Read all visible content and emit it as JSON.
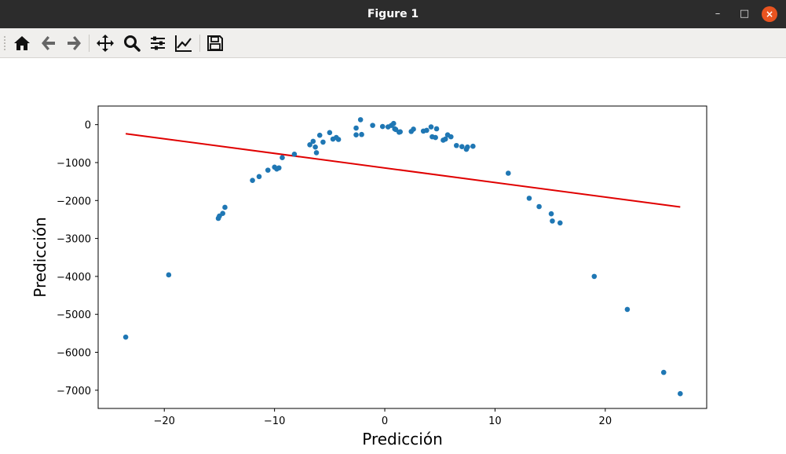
{
  "window": {
    "title": "Figure 1"
  },
  "window_controls": {
    "minimize": "–",
    "maximize": "□",
    "close": "×"
  },
  "toolbar": {
    "items": [
      "home-icon",
      "back-icon",
      "forward-icon",
      "pan-icon",
      "zoom-icon",
      "configure-subplots-icon",
      "edit-axis-icon",
      "save-icon"
    ]
  },
  "colors": {
    "scatter": "#1f77b4",
    "fit_line": "#e00000",
    "titlebar": "#2c2c2c",
    "close_button": "#e95420"
  },
  "chart_data": {
    "type": "scatter",
    "title": "",
    "xlabel": "Predicción",
    "ylabel": "Predicción",
    "xlim": [
      -26,
      29.2
    ],
    "ylim": [
      -7480,
      490
    ],
    "xticks": [
      -20,
      -10,
      0,
      10,
      20
    ],
    "yticks": [
      0,
      -1000,
      -2000,
      -3000,
      -4000,
      -5000,
      -6000,
      -7000
    ],
    "xtick_labels": [
      "−20",
      "−10",
      "0",
      "10",
      "20"
    ],
    "ytick_labels": [
      "0",
      "−1000",
      "−2000",
      "−3000",
      "−4000",
      "−5000",
      "−6000",
      "−7000"
    ],
    "grid": false,
    "series": [
      {
        "kind": "points",
        "x": [
          -23.5,
          -19.6,
          -15.1,
          -15.0,
          -14.7,
          -14.5,
          -12.0,
          -11.4,
          -10.6,
          -10.0,
          -9.8,
          -9.6,
          -9.3,
          -8.2,
          -6.8,
          -6.5,
          -6.3,
          -6.2,
          -5.9,
          -5.6,
          -5.0,
          -4.7,
          -4.4,
          -4.2,
          -2.6,
          -2.6,
          -2.2,
          -2.1,
          -1.1,
          -0.2,
          0.3,
          0.6,
          0.8,
          0.9,
          1.0,
          1.3,
          1.4,
          2.4,
          2.6,
          3.5,
          3.8,
          4.2,
          4.3,
          4.6,
          4.7,
          5.3,
          5.5,
          5.7,
          6.0,
          6.5,
          7.0,
          7.4,
          7.5,
          8.0,
          11.2,
          13.1,
          14.0,
          15.1,
          15.2,
          15.9,
          19.0,
          22.0,
          25.3,
          26.8
        ],
        "y": [
          -5600,
          -3960,
          -2470,
          -2410,
          -2340,
          -2180,
          -1470,
          -1370,
          -1200,
          -1120,
          -1170,
          -1140,
          -870,
          -780,
          -530,
          -440,
          -590,
          -740,
          -280,
          -460,
          -210,
          -380,
          -340,
          -390,
          -90,
          -270,
          130,
          -260,
          -20,
          -50,
          -60,
          -20,
          30,
          -110,
          -130,
          -200,
          -190,
          -180,
          -120,
          -170,
          -150,
          -60,
          -320,
          -340,
          -110,
          -410,
          -380,
          -270,
          -320,
          -550,
          -580,
          -650,
          -590,
          -570,
          -1280,
          -1940,
          -2160,
          -2350,
          -2540,
          -2590,
          -4000,
          -4870,
          -6530,
          -7090
        ]
      },
      {
        "kind": "line",
        "x": [
          -23.5,
          26.8
        ],
        "y": [
          -240,
          -2170
        ]
      }
    ]
  }
}
